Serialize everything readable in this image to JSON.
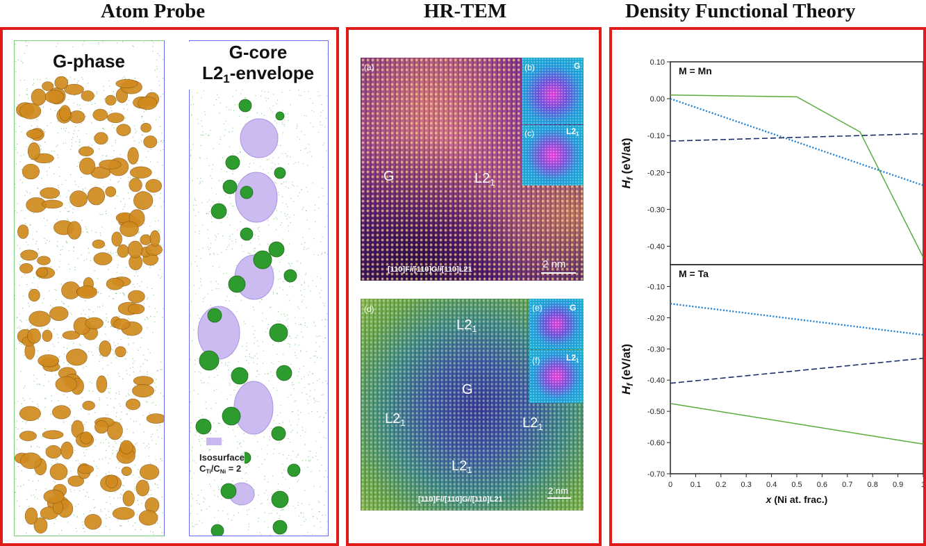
{
  "sections": {
    "atom_probe": "Atom Probe",
    "hrtem": "HR-TEM",
    "dft": "Density Functional Theory"
  },
  "atom_probe": {
    "left_label": "G-phase",
    "right_label_line1": "G-core",
    "right_label_line2": "L2",
    "right_label_sub": "1",
    "right_label_tail": "-envelope",
    "isosurface_line1": "Isosurface",
    "isosurface_line2": "C",
    "isosurface_ti": "Ti",
    "isosurface_slash": "/C",
    "isosurface_ni": "Ni",
    "isosurface_tail": " = 2",
    "colors": {
      "g_phase": "#d08a1e",
      "l21": "#c9b8f0",
      "core": "#2e9b2e",
      "matrix": "#4caf50"
    }
  },
  "hrtem": {
    "top": {
      "label_a": "(a)",
      "label_b": "(b)",
      "label_c": "(c)",
      "inset_b": "G",
      "inset_c_main": "L2",
      "inset_c_sub": "1",
      "g_label": "G",
      "l21_main": "L2",
      "l21_sub": "1",
      "zone_axis": "[110]F//[110]G//[110]L21",
      "scale": "2 nm"
    },
    "bottom": {
      "label_d": "(d)",
      "label_e": "(e)",
      "label_f": "(f)",
      "inset_e": "G",
      "inset_f_main": "L2",
      "inset_f_sub": "1",
      "l21_top_main": "L2",
      "l21_top_sub": "1",
      "g_label": "G",
      "l21_left_main": "L2",
      "l21_left_sub": "1",
      "l21_right_main": "L2",
      "l21_right_sub": "1",
      "l21_bottom_main": "L2",
      "l21_bottom_sub": "1",
      "zone_axis": "[110]F//[110]G//[110]L21",
      "scale": "2 nm"
    }
  },
  "chart_data": [
    {
      "type": "line",
      "panel_label": "M = Mn",
      "ylabel": "Hf (eV/at)",
      "ylim": [
        -0.45,
        0.1
      ],
      "yticks": [
        "0.10",
        "0.00",
        "-0.10",
        "-0.20",
        "-0.30",
        "-0.40"
      ],
      "grid": false,
      "series": [
        {
          "style": "solid",
          "color": "#5aab3c",
          "x": [
            0,
            0.5,
            0.75,
            1.0
          ],
          "y": [
            0.01,
            0.005,
            -0.09,
            -0.43
          ]
        },
        {
          "style": "dotted",
          "color": "#1f7fd0",
          "x": [
            0,
            1.0
          ],
          "y": [
            0.0,
            -0.235
          ]
        },
        {
          "style": "dashed",
          "color": "#1a2d6b",
          "x": [
            0,
            1.0
          ],
          "y": [
            -0.115,
            -0.095
          ]
        }
      ]
    },
    {
      "type": "line",
      "panel_label": "M = Ta",
      "xlabel": "x (Ni at. frac.)",
      "ylabel": "Hf (eV/at)",
      "xlim": [
        0,
        1
      ],
      "ylim": [
        -0.7,
        -0.03
      ],
      "xticks": [
        "0",
        "0.1",
        "0.2",
        "0.3",
        "0.4",
        "0.5",
        "0.6",
        "0.7",
        "0.8",
        "0.9",
        "1"
      ],
      "yticks": [
        "-0.10",
        "-0.20",
        "-0.30",
        "-0.40",
        "-0.50",
        "-0.60",
        "-0.70"
      ],
      "grid": false,
      "series": [
        {
          "style": "solid",
          "color": "#5aab3c",
          "x": [
            0,
            1.0
          ],
          "y": [
            -0.475,
            -0.605
          ]
        },
        {
          "style": "dotted",
          "color": "#1f7fd0",
          "x": [
            0,
            1.0
          ],
          "y": [
            -0.155,
            -0.255
          ]
        },
        {
          "style": "dashed",
          "color": "#1a2d6b",
          "x": [
            0,
            1.0
          ],
          "y": [
            -0.41,
            -0.33
          ]
        }
      ]
    }
  ]
}
